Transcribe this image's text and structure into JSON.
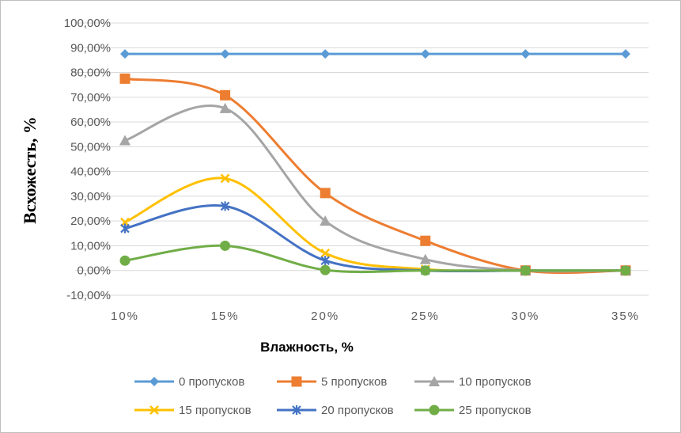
{
  "chart_data": {
    "type": "line",
    "title": "",
    "xlabel": "Влажность, %",
    "ylabel": "Всхожесть, %",
    "categories": [
      "10%",
      "15%",
      "20%",
      "25%",
      "30%",
      "35%"
    ],
    "ylim": [
      -10,
      100
    ],
    "yticks": [
      -10,
      0,
      10,
      20,
      30,
      40,
      50,
      60,
      70,
      80,
      90,
      100
    ],
    "ytick_labels": [
      "-10,00%",
      "0,00%",
      "10,00%",
      "20,00%",
      "30,00%",
      "40,00%",
      "50,00%",
      "60,00%",
      "70,00%",
      "80,00%",
      "90,00%",
      "100,00%"
    ],
    "grid": "horizontal",
    "legend_position": "bottom",
    "series": [
      {
        "name": "0 пропусков",
        "color": "#5B9BD5",
        "marker": "diamond",
        "values": [
          87.5,
          87.5,
          87.5,
          87.5,
          87.5,
          87.5
        ]
      },
      {
        "name": "5 пропусков",
        "color": "#ED7D31",
        "marker": "square",
        "values": [
          77.5,
          70.8,
          31.3,
          12.0,
          0,
          0
        ]
      },
      {
        "name": "10 пропусков",
        "color": "#A5A5A5",
        "marker": "triangle",
        "values": [
          52.5,
          65.5,
          20.0,
          4.5,
          0,
          0
        ]
      },
      {
        "name": "15 пропусков",
        "color": "#FFC000",
        "marker": "x",
        "values": [
          19.5,
          37.2,
          7.0,
          0.5,
          0,
          0
        ]
      },
      {
        "name": "20 пропусков",
        "color": "#4472C4",
        "marker": "star",
        "values": [
          17.0,
          26.0,
          4.0,
          0,
          0,
          0
        ]
      },
      {
        "name": "25 пропусков",
        "color": "#70AD47",
        "marker": "circle",
        "values": [
          4.0,
          10.0,
          0.2,
          0,
          0,
          0
        ]
      }
    ]
  }
}
